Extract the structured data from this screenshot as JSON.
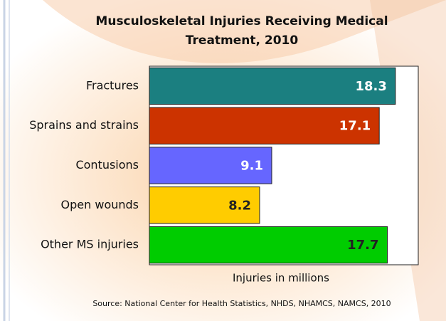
{
  "chart_data": {
    "type": "bar",
    "orientation": "horizontal",
    "title": "Musculoskeletal Injuries Receiving Medical Treatment, 2010",
    "categories": [
      "Fractures",
      "Sprains and strains",
      "Contusions",
      "Open wounds",
      "Other MS injuries"
    ],
    "values": [
      18.3,
      17.1,
      9.1,
      8.2,
      17.7
    ],
    "colors": [
      "#1b7f80",
      "#cc3300",
      "#6666ff",
      "#ffcc00",
      "#00cc00"
    ],
    "value_label_colors": [
      "#ffffff",
      "#ffffff",
      "#ffffff",
      "#222222",
      "#222222"
    ],
    "xlim": [
      0,
      20
    ],
    "xlabel": "Injuries in millions",
    "source": "Source: National Center for Health Statistics, NHDS, NHAMCS, NAMCS, 2010"
  }
}
